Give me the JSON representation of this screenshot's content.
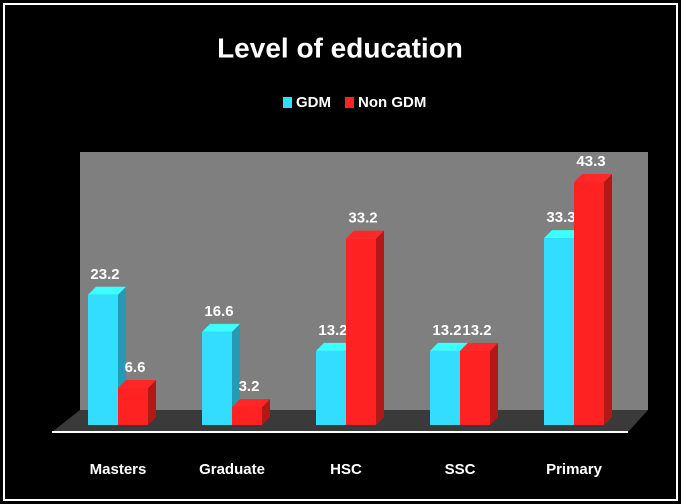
{
  "chart_data": {
    "type": "bar3d",
    "title": "Level of education",
    "categories": [
      "Masters",
      "Graduate",
      "HSC",
      "SSC",
      "Primary"
    ],
    "series": [
      {
        "name": "GDM",
        "color": "#33ddff",
        "values": [
          23.2,
          16.6,
          13.2,
          13.2,
          33.3
        ]
      },
      {
        "name": "Non GDM",
        "color": "#ff2222",
        "values": [
          6.6,
          3.2,
          33.2,
          13.2,
          43.3
        ]
      }
    ],
    "legend": "top"
  }
}
